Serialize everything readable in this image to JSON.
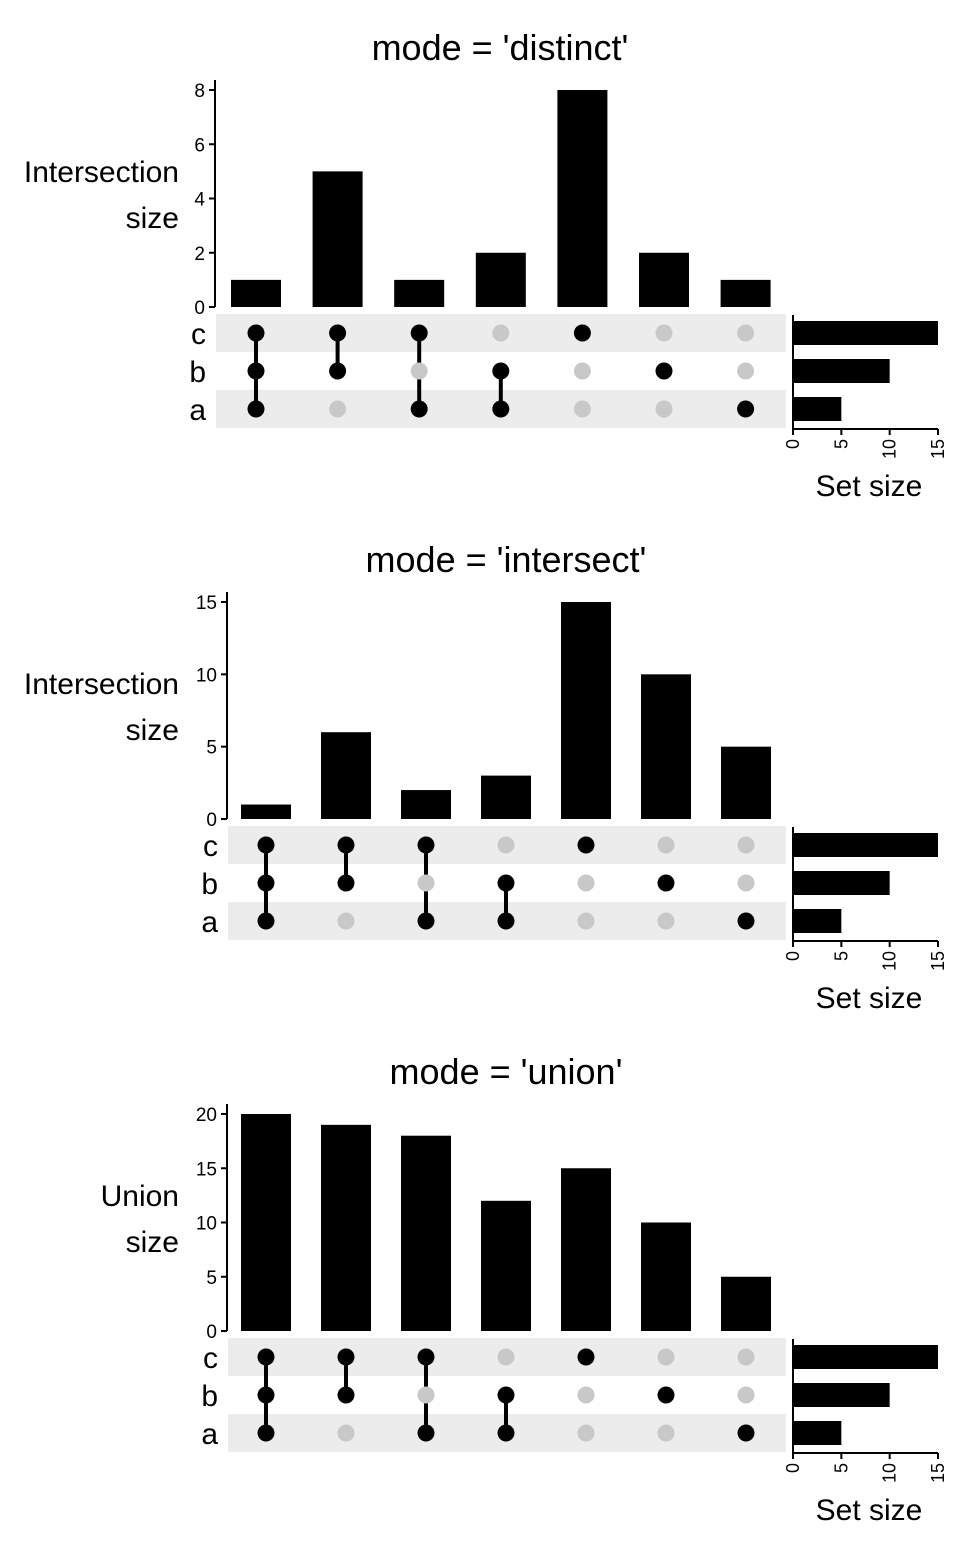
{
  "chart_data": [
    {
      "type": "bar",
      "subtype": "upset",
      "title": "mode = 'distinct'",
      "ylabel": [
        "Intersection",
        "size"
      ],
      "ylim": [
        0,
        8
      ],
      "yticks": [
        0,
        2,
        4,
        6,
        8
      ],
      "sets": [
        "c",
        "b",
        "a"
      ],
      "intersections": [
        [
          "c",
          "b",
          "a"
        ],
        [
          "c",
          "b"
        ],
        [
          "c",
          "a"
        ],
        [
          "b",
          "a"
        ],
        [
          "c"
        ],
        [
          "b"
        ],
        [
          "a"
        ]
      ],
      "values": [
        1,
        5,
        1,
        2,
        8,
        2,
        1
      ],
      "set_sizes": {
        "xlabel": "Set size",
        "values": [
          15,
          10,
          5
        ],
        "xlim": [
          0,
          15
        ],
        "xticks": [
          0,
          5,
          10,
          15
        ]
      }
    },
    {
      "type": "bar",
      "subtype": "upset",
      "title": "mode = 'intersect'",
      "ylabel": [
        "Intersection",
        "size"
      ],
      "ylim": [
        0,
        15
      ],
      "yticks": [
        0,
        5,
        10,
        15
      ],
      "sets": [
        "c",
        "b",
        "a"
      ],
      "intersections": [
        [
          "c",
          "b",
          "a"
        ],
        [
          "c",
          "b"
        ],
        [
          "c",
          "a"
        ],
        [
          "b",
          "a"
        ],
        [
          "c"
        ],
        [
          "b"
        ],
        [
          "a"
        ]
      ],
      "values": [
        1,
        6,
        2,
        3,
        15,
        10,
        5
      ],
      "set_sizes": {
        "xlabel": "Set size",
        "values": [
          15,
          10,
          5
        ],
        "xlim": [
          0,
          15
        ],
        "xticks": [
          0,
          5,
          10,
          15
        ]
      }
    },
    {
      "type": "bar",
      "subtype": "upset",
      "title": "mode = 'union'",
      "ylabel": [
        "Union",
        "size"
      ],
      "ylim": [
        0,
        20
      ],
      "yticks": [
        0,
        5,
        10,
        15,
        20
      ],
      "sets": [
        "c",
        "b",
        "a"
      ],
      "intersections": [
        [
          "c",
          "b",
          "a"
        ],
        [
          "c",
          "b"
        ],
        [
          "c",
          "a"
        ],
        [
          "b",
          "a"
        ],
        [
          "c"
        ],
        [
          "b"
        ],
        [
          "a"
        ]
      ],
      "values": [
        20,
        19,
        18,
        12,
        15,
        10,
        5
      ],
      "set_sizes": {
        "xlabel": "Set size",
        "values": [
          15,
          10,
          5
        ],
        "xlim": [
          0,
          15
        ],
        "xticks": [
          0,
          5,
          10,
          15
        ]
      }
    }
  ],
  "colors": {
    "bar": "#000000",
    "active_dot": "#000000",
    "inactive_dot": "#c8c8c8",
    "stripe": "#ececec"
  }
}
